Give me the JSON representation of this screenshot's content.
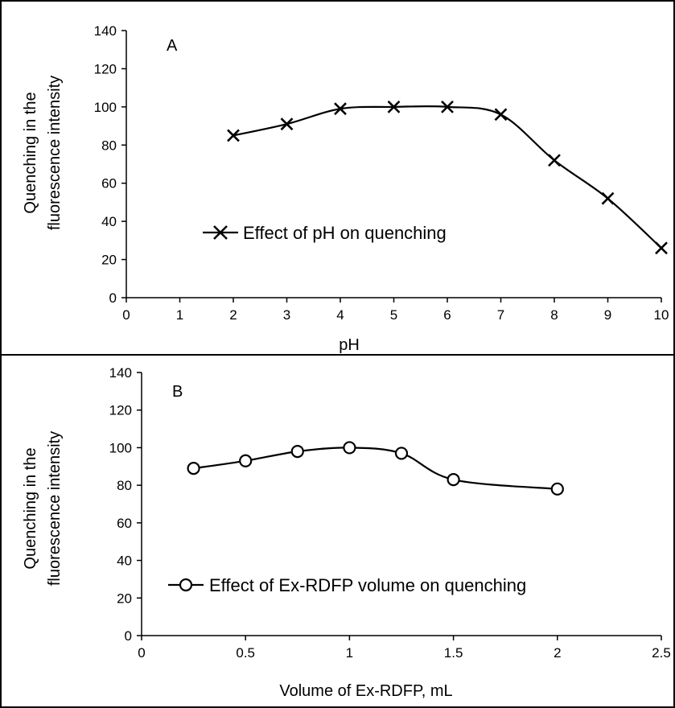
{
  "chart_data": [
    {
      "type": "line",
      "panel_label": "A",
      "xlabel": "pH",
      "ylabel_lines": [
        "Quenching in the",
        "fluorescence intensity"
      ],
      "xlim": [
        0,
        10
      ],
      "ylim": [
        0,
        140
      ],
      "xticks": [
        "0",
        "1",
        "2",
        "3",
        "4",
        "5",
        "6",
        "7",
        "8",
        "9",
        "10"
      ],
      "yticks": [
        "0",
        "20",
        "40",
        "60",
        "80",
        "100",
        "120",
        "140"
      ],
      "marker": "x",
      "legend_position": "center-left",
      "series": [
        {
          "name": "Effect of pH on quenching",
          "x": [
            2,
            3,
            4,
            5,
            6,
            7,
            8,
            9,
            10
          ],
          "y": [
            85,
            91,
            99,
            100,
            100,
            96,
            72,
            52,
            26
          ]
        }
      ]
    },
    {
      "type": "line",
      "panel_label": "B",
      "xlabel": "Volume of Ex-RDFP, mL",
      "ylabel_lines": [
        "Quenching in the",
        "fluorescence intensity"
      ],
      "xlim": [
        0,
        2.5
      ],
      "ylim": [
        0,
        140
      ],
      "xticks": [
        "0",
        "0.5",
        "1",
        "1.5",
        "2",
        "2.5"
      ],
      "yticks": [
        "0",
        "20",
        "40",
        "60",
        "80",
        "100",
        "120",
        "140"
      ],
      "marker": "circle",
      "legend_position": "center-left",
      "series": [
        {
          "name": "Effect of Ex-RDFP volume on quenching",
          "x": [
            0.25,
            0.5,
            0.75,
            1,
            1.25,
            1.5,
            2
          ],
          "y": [
            89,
            93,
            98,
            100,
            97,
            83,
            78
          ]
        }
      ]
    }
  ]
}
